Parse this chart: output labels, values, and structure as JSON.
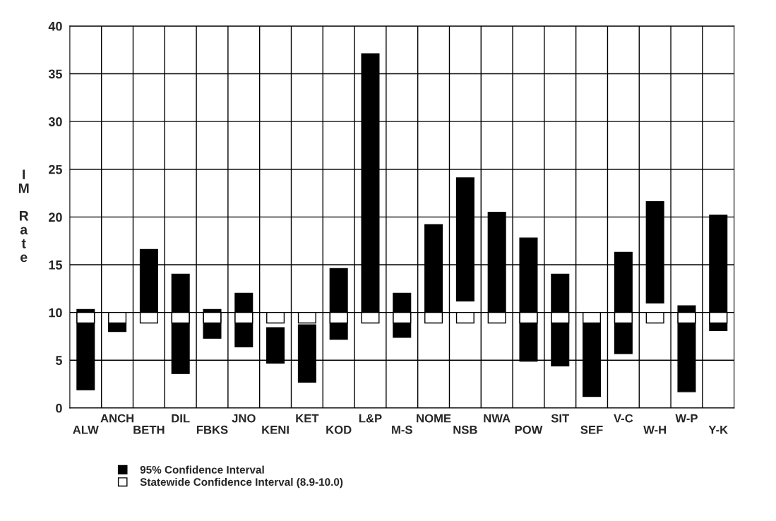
{
  "chart_data": {
    "type": "bar",
    "ylabel": "IM Rate",
    "categories": [
      "ALW",
      "ANCH",
      "BETH",
      "DIL",
      "FBKS",
      "JNO",
      "KENI",
      "KET",
      "KOD",
      "L&P",
      "M-S",
      "NOME",
      "NSB",
      "NWA",
      "POW",
      "SIT",
      "SEF",
      "V-C",
      "W-H",
      "W-P",
      "Y-K"
    ],
    "series": [
      {
        "name": "95% Confidence Interval",
        "color": "#000000",
        "base": [
          1.9,
          8.0,
          10.0,
          3.6,
          7.3,
          6.4,
          4.7,
          2.7,
          7.2,
          10.0,
          7.4,
          10.0,
          11.2,
          10.0,
          4.9,
          4.4,
          1.2,
          5.7,
          11.0,
          1.7,
          8.1
        ],
        "values": [
          8.4,
          0.9,
          6.6,
          10.4,
          3.0,
          5.6,
          3.7,
          6.0,
          7.4,
          27.1,
          4.6,
          9.2,
          12.9,
          10.5,
          12.9,
          9.6,
          7.7,
          10.6,
          10.6,
          9.0,
          12.1
        ]
      },
      {
        "name": "Statewide Confidence Interval (8.9-10.0)",
        "color": "#ffffff",
        "base": [
          8.9,
          8.9,
          8.9,
          8.9,
          8.9,
          8.9,
          8.9,
          8.9,
          8.9,
          8.9,
          8.9,
          8.9,
          8.9,
          8.9,
          8.9,
          8.9,
          8.9,
          8.9,
          8.9,
          8.9,
          8.9
        ],
        "values": [
          1.1,
          1.1,
          1.1,
          1.1,
          1.1,
          1.1,
          1.1,
          1.1,
          1.1,
          1.1,
          1.1,
          1.1,
          1.1,
          1.1,
          1.1,
          1.1,
          1.1,
          1.1,
          1.1,
          1.1,
          1.1
        ]
      }
    ],
    "ylim": [
      0,
      40
    ],
    "yticks": [
      0,
      5,
      10,
      15,
      20,
      25,
      30,
      35,
      40
    ],
    "grid": true,
    "legend": "bottom left"
  }
}
